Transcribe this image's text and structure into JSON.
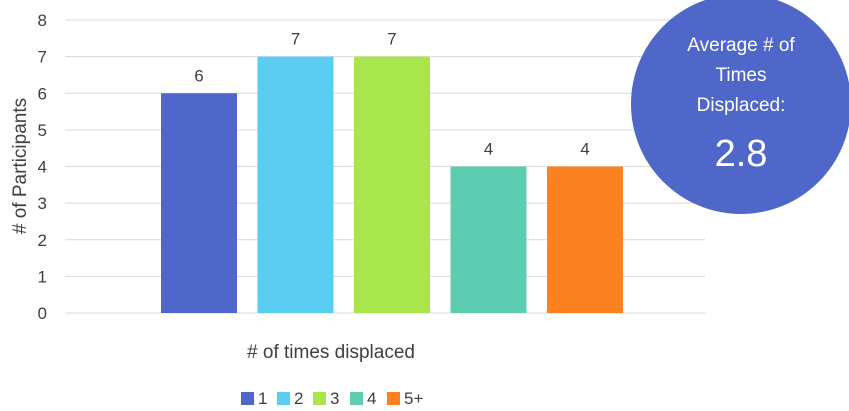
{
  "chart_data": {
    "type": "bar",
    "categories": [
      "1",
      "2",
      "3",
      "4",
      "5+"
    ],
    "values": [
      6,
      7,
      7,
      4,
      4
    ],
    "colors": [
      "#4f67c8",
      "#5bccf2",
      "#a8e64c",
      "#5ccdb0",
      "#fd8121"
    ],
    "title": "",
    "xlabel": "# of times displaced",
    "ylabel": "# of Participants",
    "ylim": [
      0,
      8
    ],
    "yticks": [
      "0",
      "1",
      "2",
      "3",
      "4",
      "5",
      "6",
      "7",
      "8"
    ],
    "grid": true,
    "legend_position": "bottom"
  },
  "callout": {
    "line1": "Average # of",
    "line2": "Times",
    "line3": "Displaced:",
    "value": "2.8",
    "color": "#4f67c8"
  }
}
